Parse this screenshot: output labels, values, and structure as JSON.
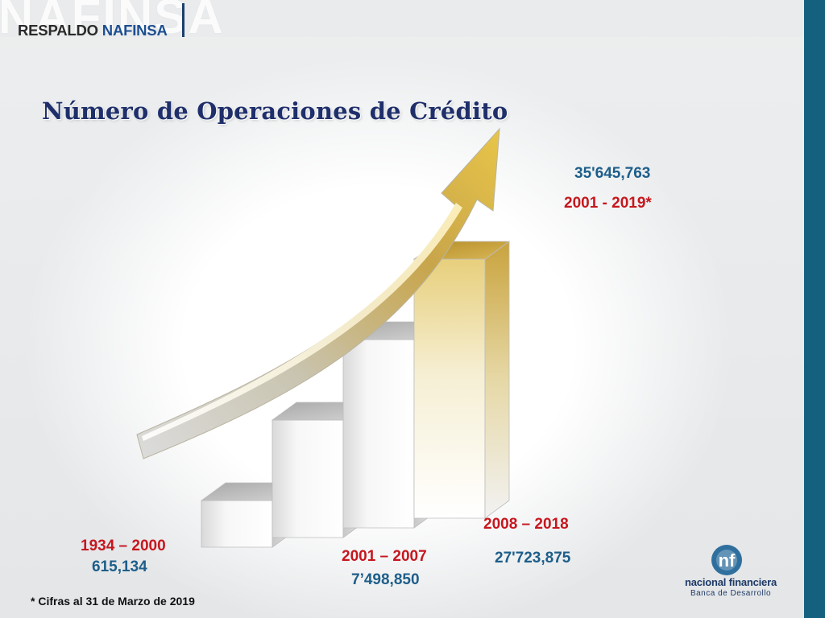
{
  "header": {
    "brand_watermark": "NAFINSA",
    "brand_left": "RESPALDO",
    "brand_right": "NAFINSA"
  },
  "chart_data": {
    "type": "bar",
    "title": "Número de Operaciones de Crédito",
    "categories": [
      "1934 – 2000",
      "2001 – 2007",
      "2008 – 2018",
      "2001 - 2019*"
    ],
    "value_labels": [
      "615,134",
      "7’498,850",
      "27'723,875",
      "35'645,763"
    ],
    "values": [
      615134,
      7498850,
      27723875,
      35645763
    ]
  },
  "footnote": "* Cifras al 31 de Marzo de 2019",
  "logo": {
    "mark_text": "nf",
    "name": "nacional financiera",
    "subtitle": "Banca de Desarrollo"
  },
  "colors": {
    "title": "#1f2f6b",
    "category_label": "#c6171e",
    "value_label": "#1d5e8a",
    "side_bar": "#13617f"
  }
}
